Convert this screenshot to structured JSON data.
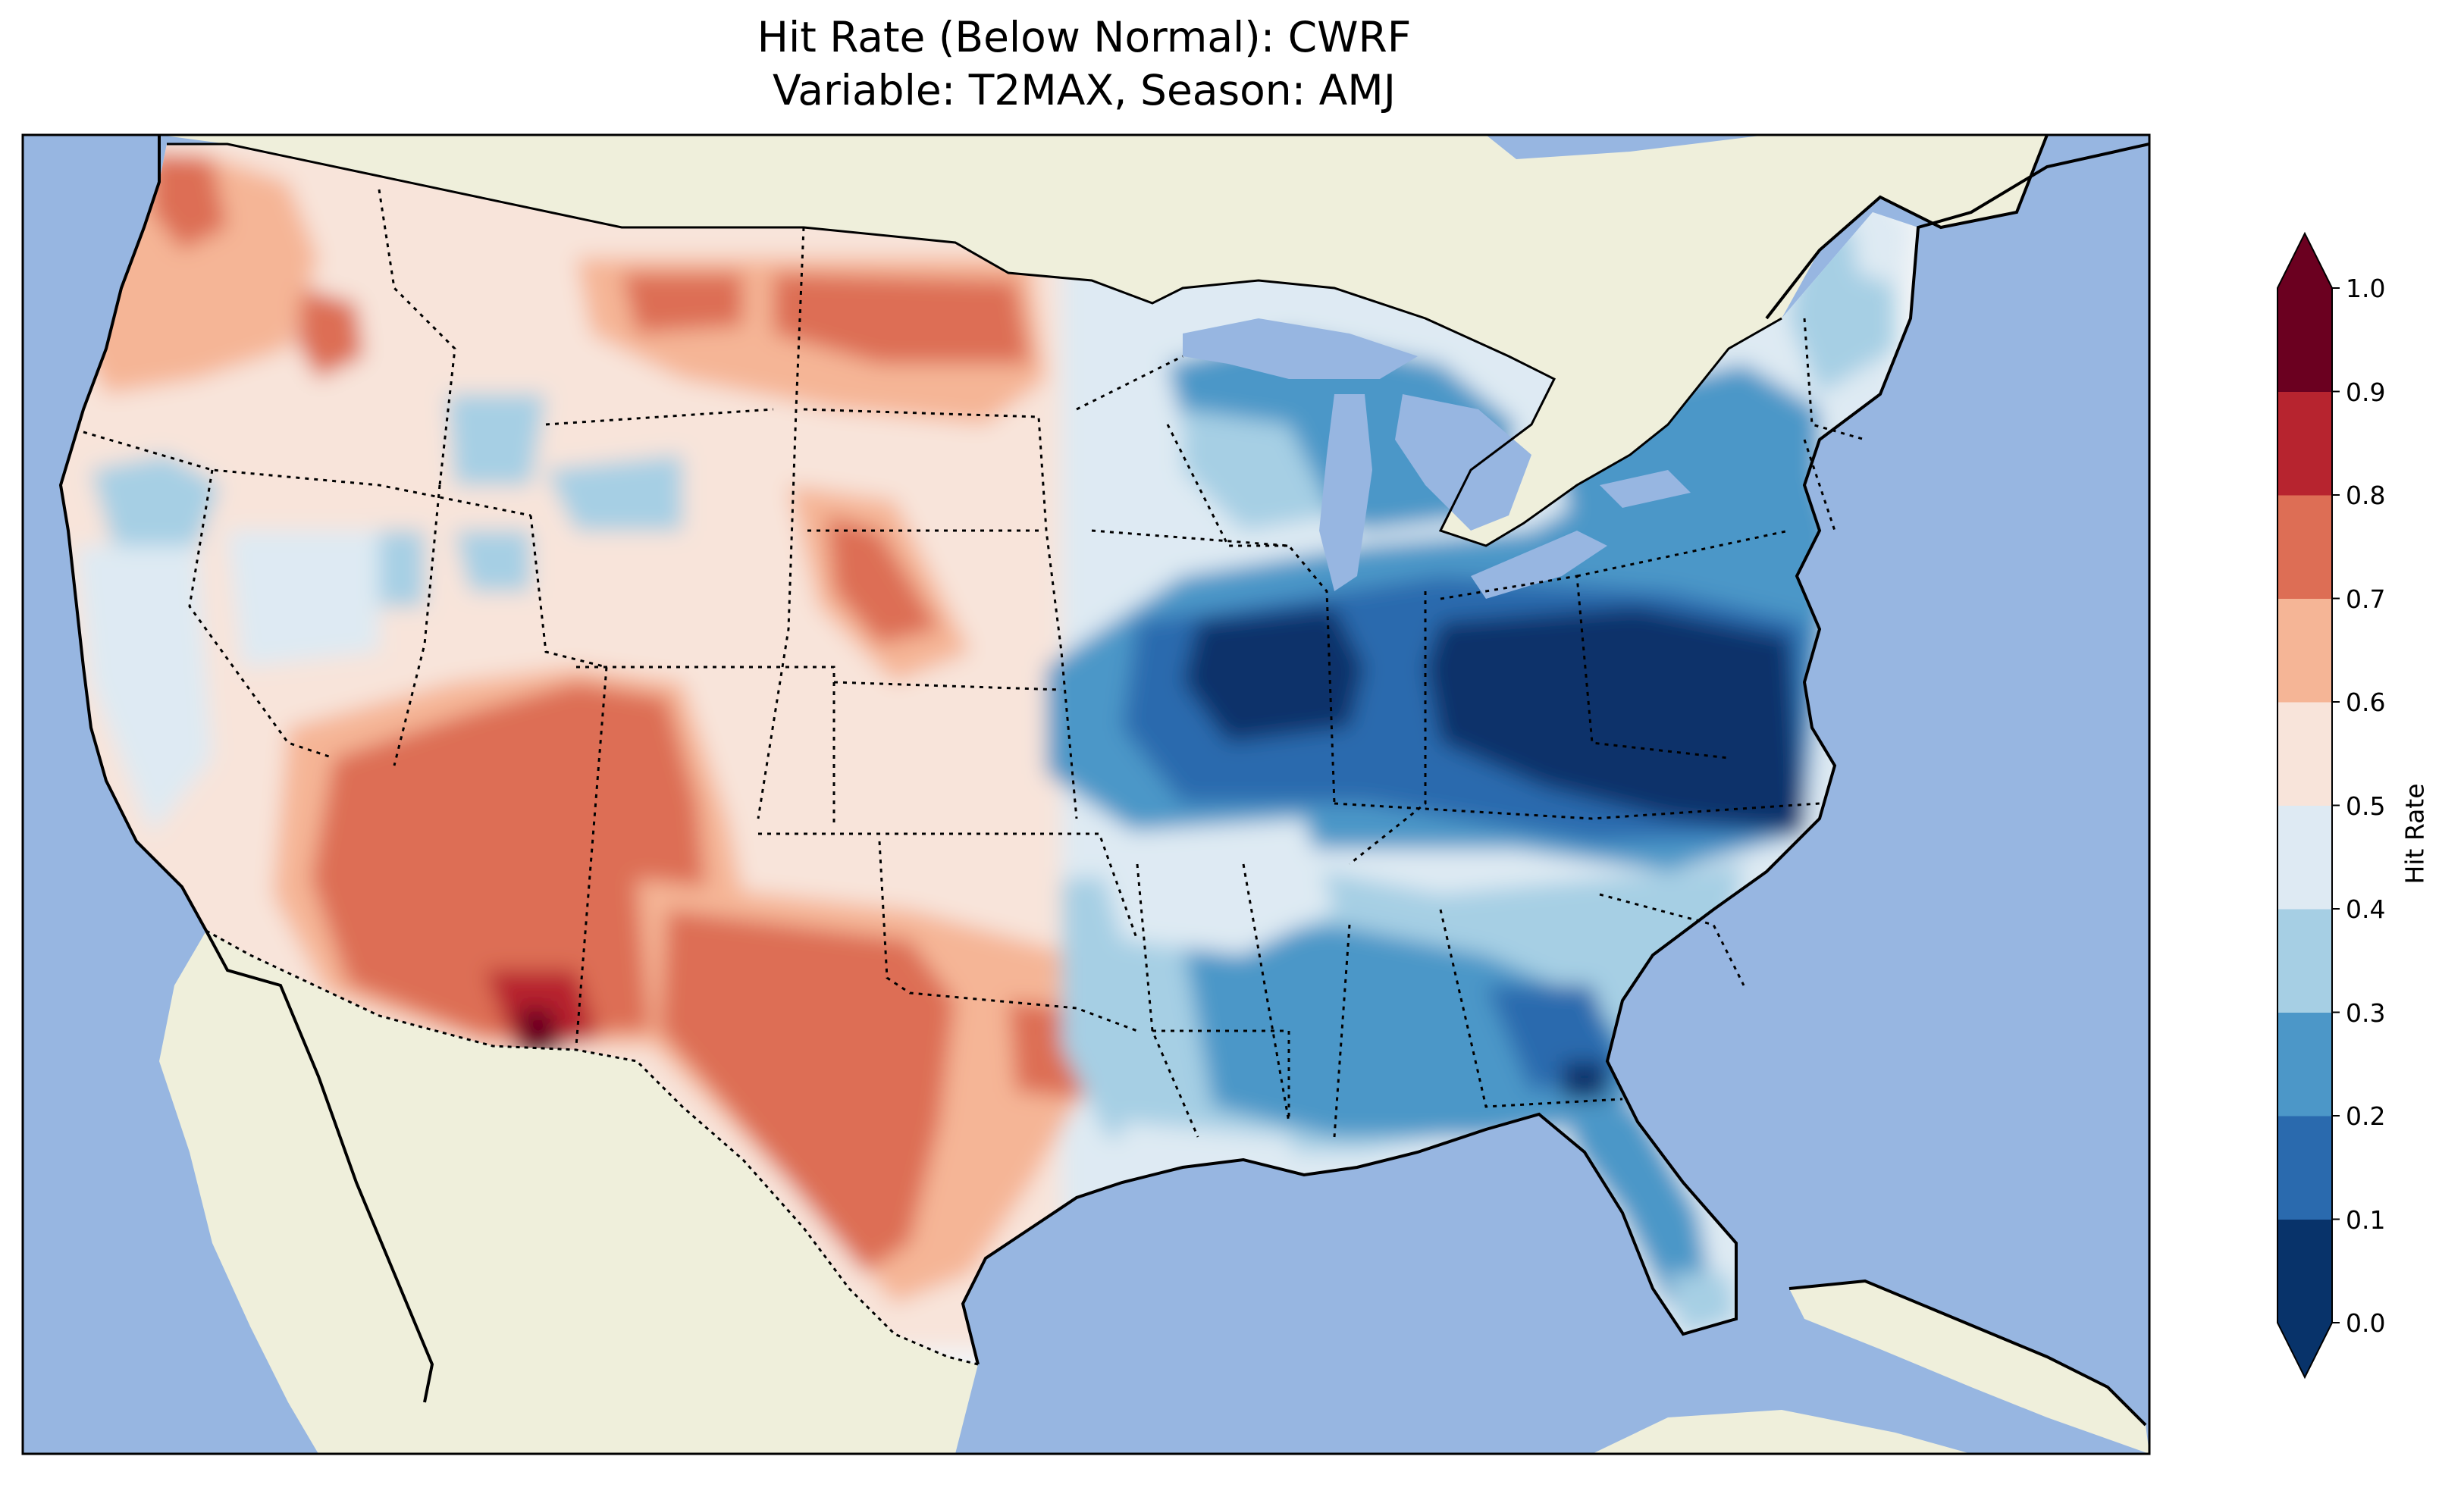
{
  "title_line1": "Hit Rate (Below Normal): CWRF",
  "title_line2": "Variable: T2MAX, Season: AMJ",
  "colors": {
    "ocean": "#97b6e1",
    "land": "#efefdb",
    "border": "#000000",
    "bins": [
      "#053061",
      "#2166ac",
      "#4393c3",
      "#92c5de",
      "#d1e5f0",
      "#f7f7f7",
      "#fddbc7",
      "#f4a582",
      "#d6604d",
      "#b2182b",
      "#67001f"
    ]
  },
  "colorbar": {
    "label": "Hit Rate",
    "ticks": [
      "0.0",
      "0.1",
      "0.2",
      "0.3",
      "0.4",
      "0.5",
      "0.6",
      "0.7",
      "0.8",
      "0.9",
      "1.0"
    ],
    "bin_colors": [
      "#08336a",
      "#2a6aae",
      "#4c97c8",
      "#a6cfe4",
      "#deeaf3",
      "#f8e4da",
      "#f5b596",
      "#dd6e55",
      "#b7242f",
      "#6b0020"
    ],
    "extend": "both"
  },
  "regions": [
    {
      "name": "pacific-northwest",
      "level": 0.72
    },
    {
      "name": "northern-plains",
      "level": 0.75
    },
    {
      "name": "great-basin",
      "level": 0.45
    },
    {
      "name": "southwest",
      "level": 0.75
    },
    {
      "name": "new-mexico-south",
      "level": 0.95
    },
    {
      "name": "texas",
      "level": 0.75
    },
    {
      "name": "ohio-valley",
      "level": 0.05
    },
    {
      "name": "mid-atlantic",
      "level": 0.05
    },
    {
      "name": "southeast",
      "level": 0.25
    },
    {
      "name": "northeast",
      "level": 0.25
    }
  ]
}
